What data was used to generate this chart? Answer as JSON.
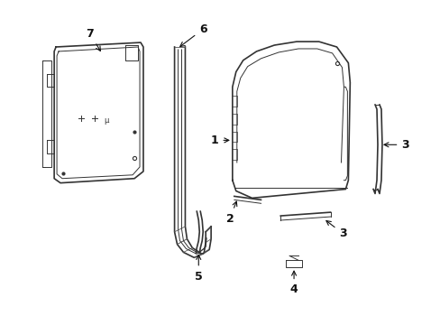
{
  "bg_color": "#ffffff",
  "line_color": "#333333",
  "label_color": "#111111",
  "hatch_color": "#555555"
}
